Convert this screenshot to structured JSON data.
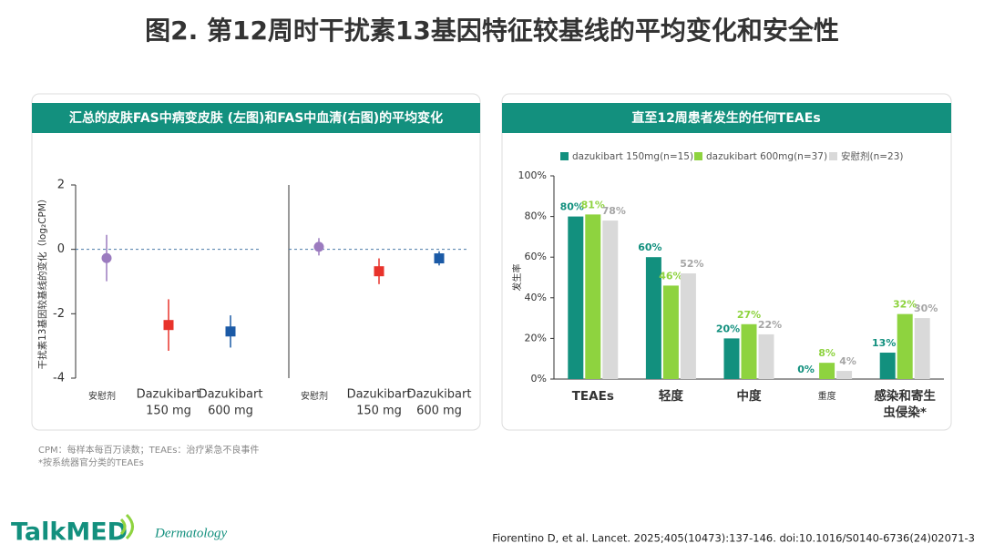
{
  "header": {
    "title": "图2. 第12周时干扰素13基因特征较基线的平均变化和安全性"
  },
  "chart_data": [
    {
      "type": "errorpoint",
      "title": "汇总的皮肤FAS中病变皮肤 (左图)和FAS中血清(右图)的平均变化",
      "y_label": "干扰素13基因较基线的变化（log₂CPM）",
      "categories": [
        [
          "安慰剂"
        ],
        [
          "Dazukibart",
          "150 mg"
        ],
        [
          "Dazukibart",
          "600 mg"
        ]
      ],
      "values": [
        -0.27,
        -2.35,
        -2.55
      ],
      "errors": [
        0.72,
        0.8,
        0.5
      ],
      "colors": [
        "#9b7bbf",
        "#e8332b",
        "#1b5aa6"
      ],
      "markers": [
        "circle",
        "square",
        "square"
      ],
      "ylim": [
        -4,
        2
      ],
      "yticks": [
        -4,
        -2,
        0,
        2
      ],
      "hline": 0
    },
    {
      "type": "errorpoint",
      "categories": [
        [
          "安慰剂"
        ],
        [
          "Dazukibart",
          "150 mg"
        ],
        [
          "Dazukibart",
          "600 mg"
        ]
      ],
      "values": [
        0.08,
        -0.68,
        -0.28
      ],
      "errors": [
        0.27,
        0.4,
        0.22
      ],
      "colors": [
        "#9b7bbf",
        "#e8332b",
        "#1b5aa6"
      ],
      "markers": [
        "circle",
        "square",
        "square"
      ],
      "ylim": [
        -4,
        2
      ],
      "hline": 0
    },
    {
      "type": "bar",
      "title": "直至12周患者发生的任何TEAEs",
      "y_label": "发生率",
      "categories": [
        [
          "TEAEs"
        ],
        [
          "轻度"
        ],
        [
          "中度"
        ],
        [
          "重度"
        ],
        [
          "感染和寄生",
          "虫侵染*"
        ]
      ],
      "series": [
        {
          "name": "dazukibart 150mg(n=15)",
          "color": "#12907e",
          "label_color": "#12907e",
          "values": [
            80,
            60,
            20,
            0,
            13
          ],
          "value_labels": [
            "80%",
            "60%",
            "20%",
            "0%",
            "13%"
          ]
        },
        {
          "name": "dazukibart 600mg(n=37)",
          "color": "#8ed33f",
          "label_color": "#8ed33f",
          "values": [
            81,
            46,
            27,
            8,
            32
          ],
          "value_labels": [
            "81%",
            "46%",
            "27%",
            "8%",
            "32%"
          ]
        },
        {
          "name": "安慰剂(n=23)",
          "color": "#d9d9d9",
          "label_color": "#a6a6a6",
          "values": [
            78,
            52,
            22,
            4,
            30
          ],
          "value_labels": [
            "78%",
            "52%",
            "22%",
            "4%",
            "30%"
          ]
        }
      ],
      "ylim": [
        0,
        100
      ],
      "yticks": [
        {
          "value": 0,
          "label": "0%"
        },
        {
          "value": 20,
          "label": "20%"
        },
        {
          "value": 40,
          "label": "40%"
        },
        {
          "value": 60,
          "label": "60%"
        },
        {
          "value": 80,
          "label": "80%"
        },
        {
          "value": 100,
          "label": "100%"
        }
      ]
    }
  ],
  "footnotes": [
    "CPM：每样本每百万读数；TEAEs：治疗紧急不良事件",
    "*按系统器官分类的TEAEs"
  ],
  "logo": {
    "brand": "TalkMED",
    "subtitle": "Dermatology"
  },
  "citation": "Fiorentino D, et al. Lancet. 2025;405(10473):137-146. doi:10.1016/S0140-6736(24)02071-3"
}
